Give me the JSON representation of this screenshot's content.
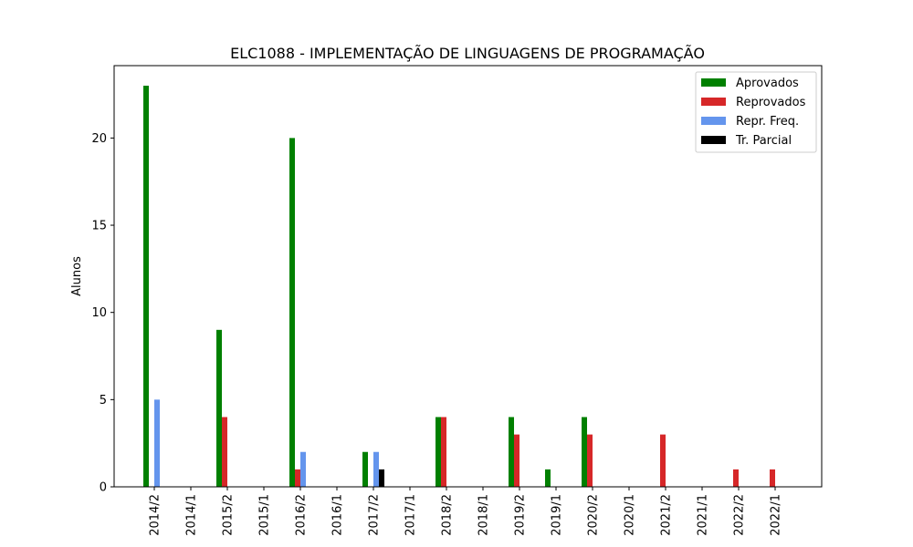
{
  "chart_data": {
    "type": "bar",
    "title": "ELC1088 - IMPLEMENTAÇÃO DE LINGUAGENS DE PROGRAMAÇÃO",
    "xlabel": "",
    "ylabel": "Alunos",
    "ylim": [
      0,
      24.15
    ],
    "yticks": [
      0,
      5,
      10,
      15,
      20
    ],
    "grid": false,
    "legend_position": "top-right",
    "categories": [
      "2014/2",
      "2014/1",
      "2015/2",
      "2015/1",
      "2016/2",
      "2016/1",
      "2017/2",
      "2017/1",
      "2018/2",
      "2018/1",
      "2019/2",
      "2019/1",
      "2020/2",
      "2020/1",
      "2021/2",
      "2021/1",
      "2022/2",
      "2022/1"
    ],
    "series": [
      {
        "name": "Aprovados",
        "color": "#008000",
        "values": [
          23,
          0,
          9,
          0,
          20,
          0,
          2,
          0,
          4,
          0,
          4,
          1,
          4,
          0,
          0,
          0,
          0,
          0
        ]
      },
      {
        "name": "Reprovados",
        "color": "#d62728",
        "values": [
          0,
          0,
          4,
          0,
          1,
          0,
          0,
          0,
          4,
          0,
          3,
          0,
          3,
          0,
          3,
          0,
          1,
          1
        ]
      },
      {
        "name": "Repr. Freq.",
        "color": "#6495ed",
        "values": [
          5,
          0,
          0,
          0,
          2,
          0,
          2,
          0,
          0,
          0,
          0,
          0,
          0,
          0,
          0,
          0,
          0,
          0
        ]
      },
      {
        "name": "Tr. Parcial",
        "color": "#000000",
        "values": [
          0,
          0,
          0,
          0,
          0,
          0,
          1,
          0,
          0,
          0,
          0,
          0,
          0,
          0,
          0,
          0,
          0,
          0
        ]
      }
    ]
  }
}
